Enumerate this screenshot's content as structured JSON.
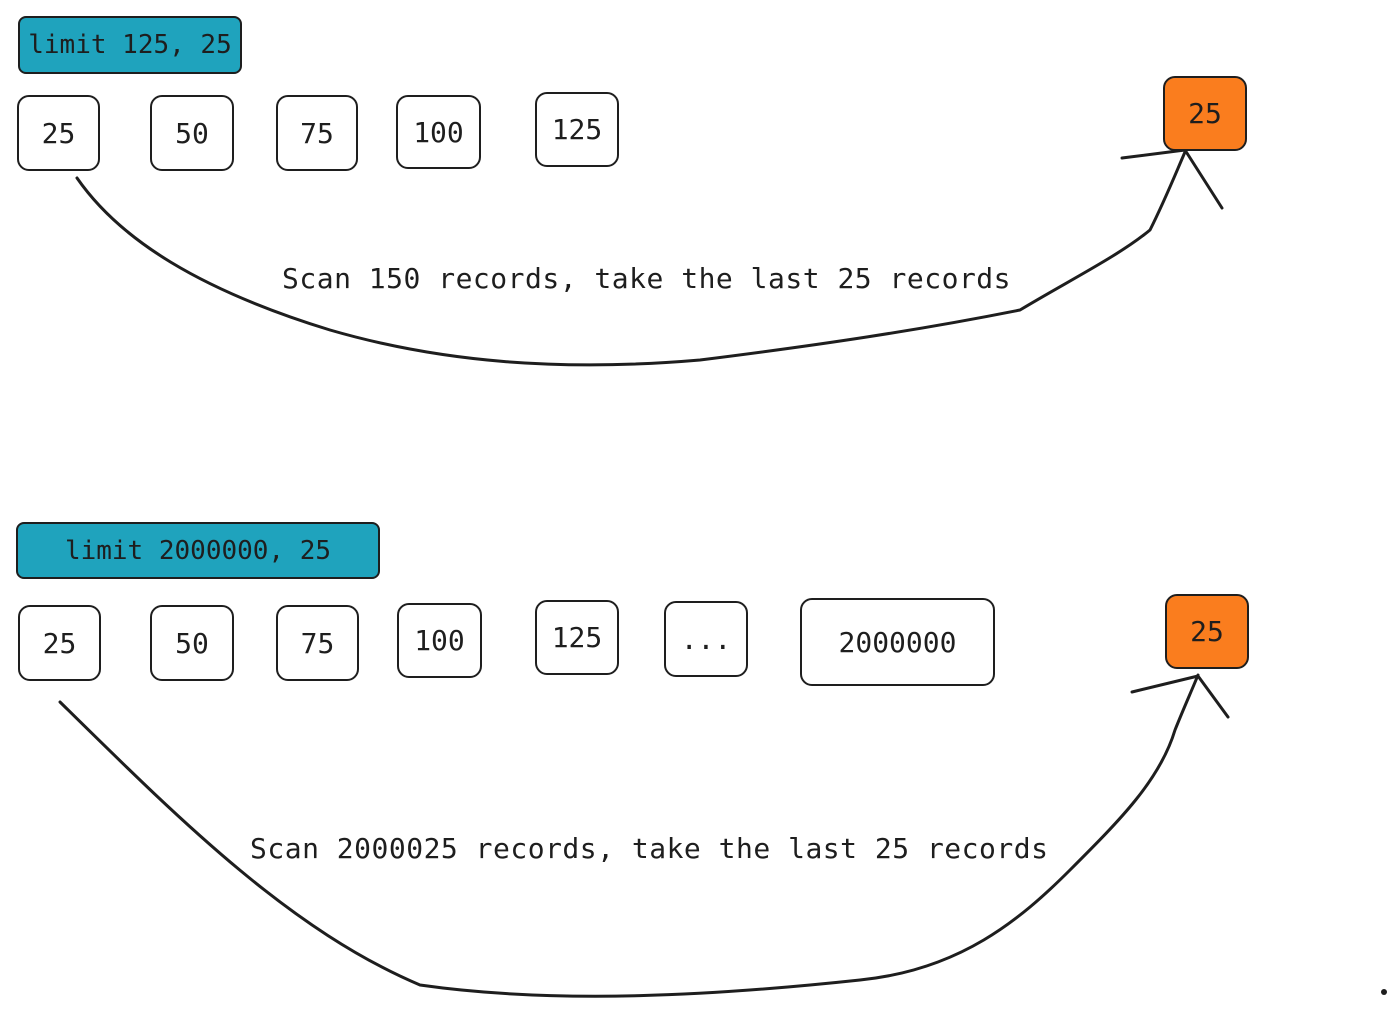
{
  "colors": {
    "tag": "#1fa3bd",
    "result": "#fa7d1e",
    "stroke": "#1e1e1e"
  },
  "example1": {
    "query": "limit 125, 25",
    "items": [
      "25",
      "50",
      "75",
      "100",
      "125"
    ],
    "result": "25",
    "caption": "Scan 150 records, take the last 25 records"
  },
  "example2": {
    "query": "limit 2000000, 25",
    "items": [
      "25",
      "50",
      "75",
      "100",
      "125",
      "...",
      "2000000"
    ],
    "result": "25",
    "caption": "Scan 2000025 records, take the last 25 records"
  }
}
